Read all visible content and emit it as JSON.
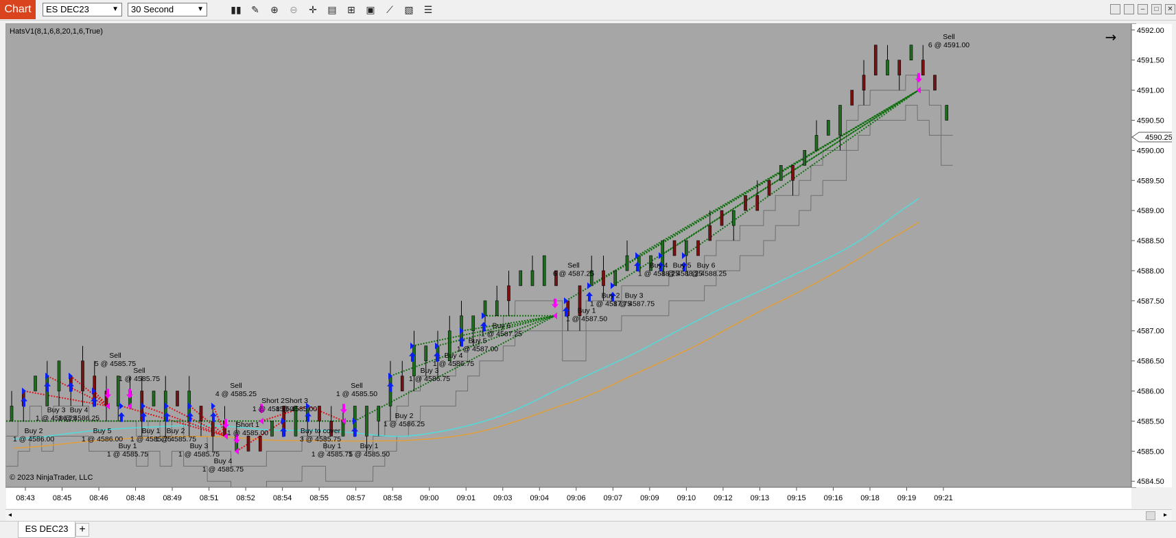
{
  "toolbar": {
    "app_label": "Chart",
    "instrument": "ES DEC23",
    "interval": "30 Second",
    "tools": [
      "bar-type-icon",
      "pencil-icon",
      "zoom-in-icon",
      "zoom-out-icon",
      "crosshair-icon",
      "data-box-icon",
      "properties-icon",
      "screen-icon",
      "strategy-icon",
      "notes-icon",
      "list-icon"
    ]
  },
  "indicator_label": "HatsV1(8,1,6,8,20,1,6,True)",
  "copyright": "© 2023 NinjaTrader, LLC",
  "current_price_label": "4590.25",
  "tab": {
    "label": "ES DEC23",
    "add": "+"
  },
  "chart_data": {
    "type": "candlestick",
    "x_ticks": [
      "08:43",
      "08:45",
      "08:46",
      "08:48",
      "08:49",
      "08:51",
      "08:52",
      "08:54",
      "08:55",
      "08:57",
      "08:58",
      "09:00",
      "09:01",
      "09:03",
      "09:04",
      "09:06",
      "09:07",
      "09:09",
      "09:10",
      "09:12",
      "09:13",
      "09:15",
      "09:16",
      "09:18",
      "09:19",
      "09:21"
    ],
    "y_ticks": [
      "4592.00",
      "4591.50",
      "4591.00",
      "4590.50",
      "4590.00",
      "4589.50",
      "4589.00",
      "4588.50",
      "4588.00",
      "4587.50",
      "4587.00",
      "4586.50",
      "4586.00",
      "4585.50",
      "4585.00",
      "4584.50"
    ],
    "ylim": [
      4584.4,
      4592.1
    ],
    "colors": {
      "background": "#a6a6a6",
      "up": "#1f6b1f",
      "down": "#7a1111",
      "ema_fast": "#56d8d8",
      "ema_slow": "#e0a040",
      "buy": "#0a1ff0",
      "sell": "#ff00ff",
      "profit_line": "#0b6e0b",
      "loss_line": "#e0101a"
    },
    "annotations": [
      {
        "text": [
          "Buy 2",
          "1 @ 4586.00"
        ],
        "x": 40,
        "y": 4585.3
      },
      {
        "text": [
          "Buy 3",
          "1 @ 4586.25"
        ],
        "x": 73,
        "y": 4585.65
      },
      {
        "text": [
          "Buy 4",
          "1 @ 4586.25"
        ],
        "x": 106,
        "y": 4585.65
      },
      {
        "text": [
          "Buy 5",
          "1 @ 4586.00"
        ],
        "x": 140,
        "y": 4585.3
      },
      {
        "text": [
          "Sell",
          "5 @ 4585.75"
        ],
        "x": 159,
        "y": 4586.55
      },
      {
        "text": [
          "Sell",
          "1 @ 4585.75"
        ],
        "x": 194,
        "y": 4586.3
      },
      {
        "text": [
          "Buy 1",
          "1 @ 4585.75"
        ],
        "x": 177,
        "y": 4585.05
      },
      {
        "text": [
          "Buy 1",
          "1 @ 4585.75"
        ],
        "x": 211,
        "y": 4585.3
      },
      {
        "text": [
          "Buy 2",
          "1 @ 4585.75"
        ],
        "x": 247,
        "y": 4585.3
      },
      {
        "text": [
          "Buy 3",
          "1 @ 4585.75"
        ],
        "x": 281,
        "y": 4585.05
      },
      {
        "text": [
          "Sell",
          "4 @ 4585.25"
        ],
        "x": 335,
        "y": 4586.05
      },
      {
        "text": [
          "Short 1",
          "1 @ 4585.00"
        ],
        "x": 352,
        "y": 4585.4
      },
      {
        "text": [
          "Buy 4",
          "1 @ 4585.75"
        ],
        "x": 316,
        "y": 4584.8
      },
      {
        "text": [
          "Short 2",
          "1 @ 4585.50"
        ],
        "x": 389,
        "y": 4585.8
      },
      {
        "text": [
          "Short 3",
          "1 @ 4585.00"
        ],
        "x": 423,
        "y": 4585.8
      },
      {
        "text": [
          "Buy to cover",
          "3 @ 4585.75"
        ],
        "x": 458,
        "y": 4585.3
      },
      {
        "text": [
          "Buy 1",
          "1 @ 4585.75"
        ],
        "x": 475,
        "y": 4585.05
      },
      {
        "text": [
          "Sell",
          "1 @ 4585.50"
        ],
        "x": 511,
        "y": 4586.05
      },
      {
        "text": [
          "Buy 1",
          "1 @ 4585.50"
        ],
        "x": 529,
        "y": 4585.05
      },
      {
        "text": [
          "Buy 2",
          "1 @ 4586.25"
        ],
        "x": 580,
        "y": 4585.55
      },
      {
        "text": [
          "Buy 3",
          "1 @ 4586.75"
        ],
        "x": 617,
        "y": 4586.3
      },
      {
        "text": [
          "Buy 4",
          "1 @ 4586.75"
        ],
        "x": 652,
        "y": 4586.55
      },
      {
        "text": [
          "Buy 5",
          "1 @ 4587.00"
        ],
        "x": 687,
        "y": 4586.8
      },
      {
        "text": [
          "Buy 6",
          "1 @ 4587.25"
        ],
        "x": 722,
        "y": 4587.05
      },
      {
        "text": [
          "Sell",
          "6 @ 4587.25"
        ],
        "x": 827,
        "y": 4588.05
      },
      {
        "text": [
          "Buy 1",
          "1 @ 4587.50"
        ],
        "x": 846,
        "y": 4587.3
      },
      {
        "text": [
          "Buy 2",
          "1 @ 4587.75"
        ],
        "x": 881,
        "y": 4587.55
      },
      {
        "text": [
          "Buy 3",
          "1 @ 4587.75"
        ],
        "x": 915,
        "y": 4587.55
      },
      {
        "text": [
          "Buy 4",
          "1 @ 4588.25"
        ],
        "x": 951,
        "y": 4588.05
      },
      {
        "text": [
          "Buy 5",
          "1 @ 4588.25"
        ],
        "x": 985,
        "y": 4588.05
      },
      {
        "text": [
          "Buy 6",
          "1 @ 4588.25"
        ],
        "x": 1020,
        "y": 4588.05
      },
      {
        "text": [
          "Sell",
          "6 @ 4591.00"
        ],
        "x": 1374,
        "y": 4591.85
      }
    ]
  }
}
